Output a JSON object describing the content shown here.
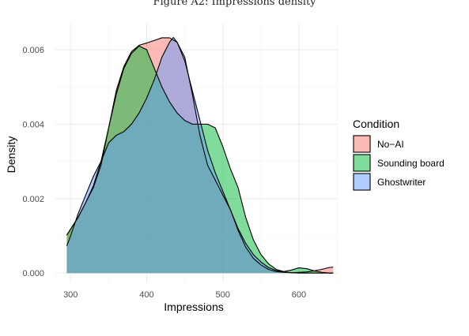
{
  "chart_data": {
    "type": "area",
    "title": "Figure A2: Impressions density",
    "xlabel": "Impressions",
    "ylabel": "Density",
    "xlim": [
      280,
      652
    ],
    "ylim": [
      -0.00025,
      0.0067
    ],
    "x_ticks": [
      300,
      400,
      500,
      600
    ],
    "x_tick_labels": [
      "300",
      "400",
      "500",
      "600"
    ],
    "y_ticks": [
      0,
      0.002,
      0.004,
      0.006
    ],
    "y_tick_labels": [
      "0.000",
      "0.002",
      "0.004",
      "0.006"
    ],
    "grid": true,
    "legend": {
      "title": "Condition",
      "position": "right"
    },
    "series": [
      {
        "name": "No−AI",
        "color": "#F8766D",
        "points": [
          [
            295,
            0.00102
          ],
          [
            310,
            0.0015
          ],
          [
            320,
            0.0019
          ],
          [
            330,
            0.0023
          ],
          [
            340,
            0.0029
          ],
          [
            350,
            0.0039
          ],
          [
            360,
            0.0049
          ],
          [
            370,
            0.00555
          ],
          [
            380,
            0.00595
          ],
          [
            390,
            0.00612
          ],
          [
            400,
            0.00618
          ],
          [
            410,
            0.00625
          ],
          [
            420,
            0.00632
          ],
          [
            430,
            0.00632
          ],
          [
            440,
            0.0062
          ],
          [
            450,
            0.0058
          ],
          [
            460,
            0.0048
          ],
          [
            470,
            0.0037
          ],
          [
            480,
            0.0029
          ],
          [
            490,
            0.0025
          ],
          [
            500,
            0.0021
          ],
          [
            510,
            0.0017
          ],
          [
            520,
            0.00115
          ],
          [
            530,
            0.0007
          ],
          [
            540,
            0.0004
          ],
          [
            550,
            0.00022
          ],
          [
            560,
            0.0001
          ],
          [
            570,
            4e-05
          ],
          [
            580,
            2e-05
          ],
          [
            590,
            1e-05
          ],
          [
            600,
            2e-05
          ],
          [
            610,
            3e-05
          ],
          [
            620,
            6e-05
          ],
          [
            630,
            0.0001
          ],
          [
            640,
            0.00015
          ],
          [
            645,
            0.00016
          ]
        ]
      },
      {
        "name": "Sounding board",
        "color": "#00BA38",
        "points": [
          [
            295,
            0.00102
          ],
          [
            310,
            0.0015
          ],
          [
            320,
            0.0019
          ],
          [
            330,
            0.00235
          ],
          [
            340,
            0.003
          ],
          [
            350,
            0.0039
          ],
          [
            360,
            0.0048
          ],
          [
            370,
            0.0055
          ],
          [
            380,
            0.0059
          ],
          [
            390,
            0.0061
          ],
          [
            400,
            0.006
          ],
          [
            410,
            0.0055
          ],
          [
            420,
            0.005
          ],
          [
            430,
            0.0046
          ],
          [
            440,
            0.0043
          ],
          [
            450,
            0.0041
          ],
          [
            460,
            0.004
          ],
          [
            470,
            0.004
          ],
          [
            480,
            0.004
          ],
          [
            490,
            0.0039
          ],
          [
            500,
            0.0034
          ],
          [
            510,
            0.0028
          ],
          [
            520,
            0.0023
          ],
          [
            530,
            0.0015
          ],
          [
            540,
            0.0009
          ],
          [
            550,
            0.0005
          ],
          [
            560,
            0.00025
          ],
          [
            570,
            0.0001
          ],
          [
            580,
            4e-05
          ],
          [
            590,
            8e-05
          ],
          [
            600,
            0.00014
          ],
          [
            610,
            0.00012
          ],
          [
            620,
            6e-05
          ],
          [
            630,
            2e-05
          ],
          [
            640,
            0.0
          ],
          [
            645,
            0.0
          ]
        ]
      },
      {
        "name": "Ghostwriter",
        "color": "#619CFF",
        "points": [
          [
            295,
            0.00073
          ],
          [
            300,
            0.001
          ],
          [
            310,
            0.0016
          ],
          [
            320,
            0.0021
          ],
          [
            330,
            0.0026
          ],
          [
            340,
            0.003
          ],
          [
            350,
            0.0035
          ],
          [
            360,
            0.0037
          ],
          [
            370,
            0.0038
          ],
          [
            380,
            0.004
          ],
          [
            390,
            0.0043
          ],
          [
            400,
            0.0047
          ],
          [
            410,
            0.0052
          ],
          [
            420,
            0.0058
          ],
          [
            430,
            0.0062
          ],
          [
            435,
            0.00633
          ],
          [
            440,
            0.0062
          ],
          [
            450,
            0.0057
          ],
          [
            460,
            0.0049
          ],
          [
            470,
            0.0041
          ],
          [
            480,
            0.0033
          ],
          [
            490,
            0.0027
          ],
          [
            500,
            0.0022
          ],
          [
            510,
            0.0017
          ],
          [
            520,
            0.0012
          ],
          [
            530,
            0.0008
          ],
          [
            540,
            0.0005
          ],
          [
            550,
            0.0003
          ],
          [
            560,
            0.00015
          ],
          [
            570,
            7e-05
          ],
          [
            580,
            3e-05
          ],
          [
            590,
            1e-05
          ],
          [
            600,
            0.0
          ],
          [
            620,
            0.0
          ],
          [
            645,
            0.0
          ]
        ]
      }
    ]
  }
}
